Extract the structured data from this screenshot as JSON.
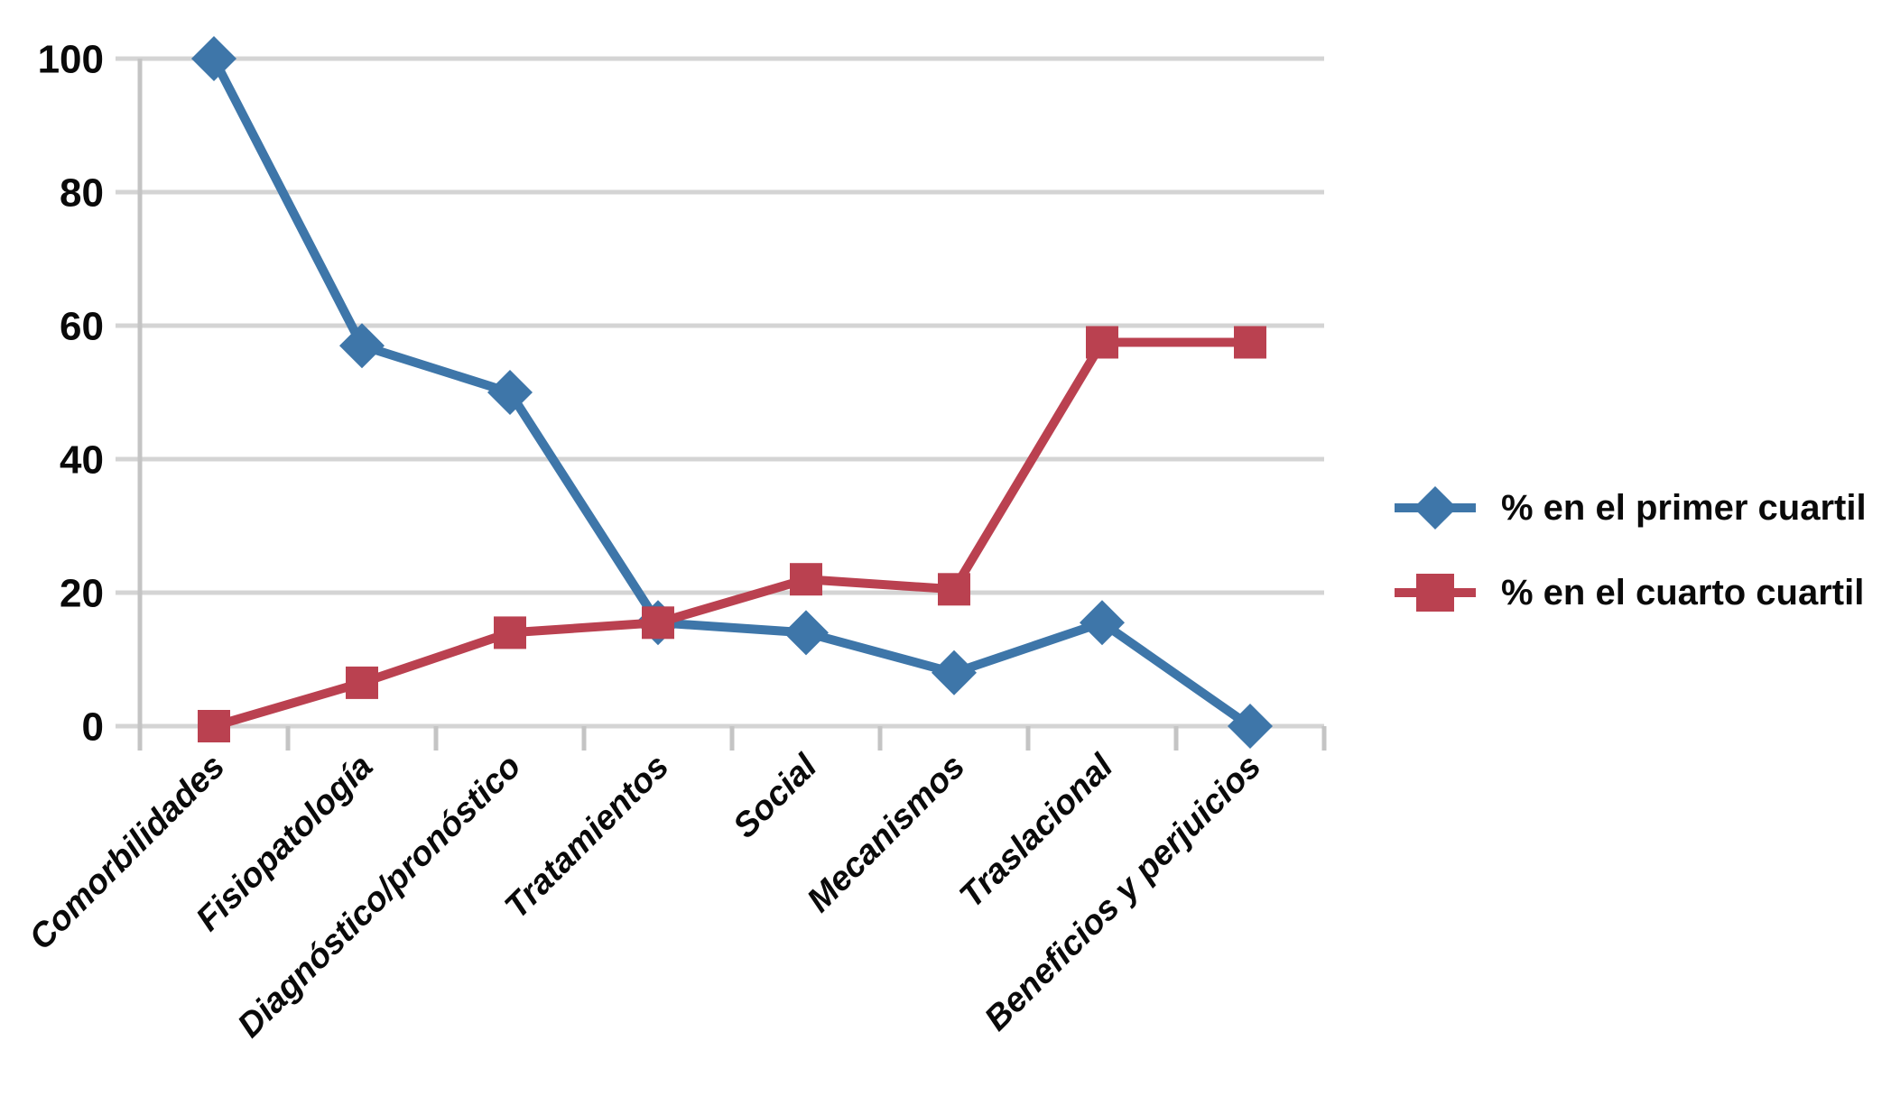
{
  "page": {
    "background": "#FFFFFF"
  },
  "chart_data": {
    "type": "line",
    "title": "",
    "xlabel": "",
    "ylabel": "",
    "categories": [
      "Comorbilidades",
      "Fisiopatología",
      "Diagnóstico/pronóstico",
      "Tratamientos",
      "Social",
      "Mecanismos",
      "Traslacional",
      "Beneficios y perjuicios"
    ],
    "series": [
      {
        "name": "% en el primer cuartil",
        "marker": "diamond",
        "color": "#3E76A9",
        "values": [
          100,
          57,
          50,
          15.5,
          14,
          8,
          15.5,
          0
        ]
      },
      {
        "name": "% en el cuarto cuartil",
        "marker": "square",
        "color": "#BA4150",
        "values": [
          0,
          6.5,
          14,
          15.5,
          22,
          20.5,
          57.5,
          57.5
        ]
      }
    ],
    "ylim": [
      0,
      100
    ],
    "yticks": [
      0,
      20,
      40,
      60,
      80,
      100
    ],
    "grid": "horizontal-only",
    "grid_color": "#D4D4D4",
    "axis_color": "#C4C4C4",
    "text_color": "#0A0A0A",
    "legend_position": "right-middle",
    "x_tick_label_rotation_deg": -45
  }
}
